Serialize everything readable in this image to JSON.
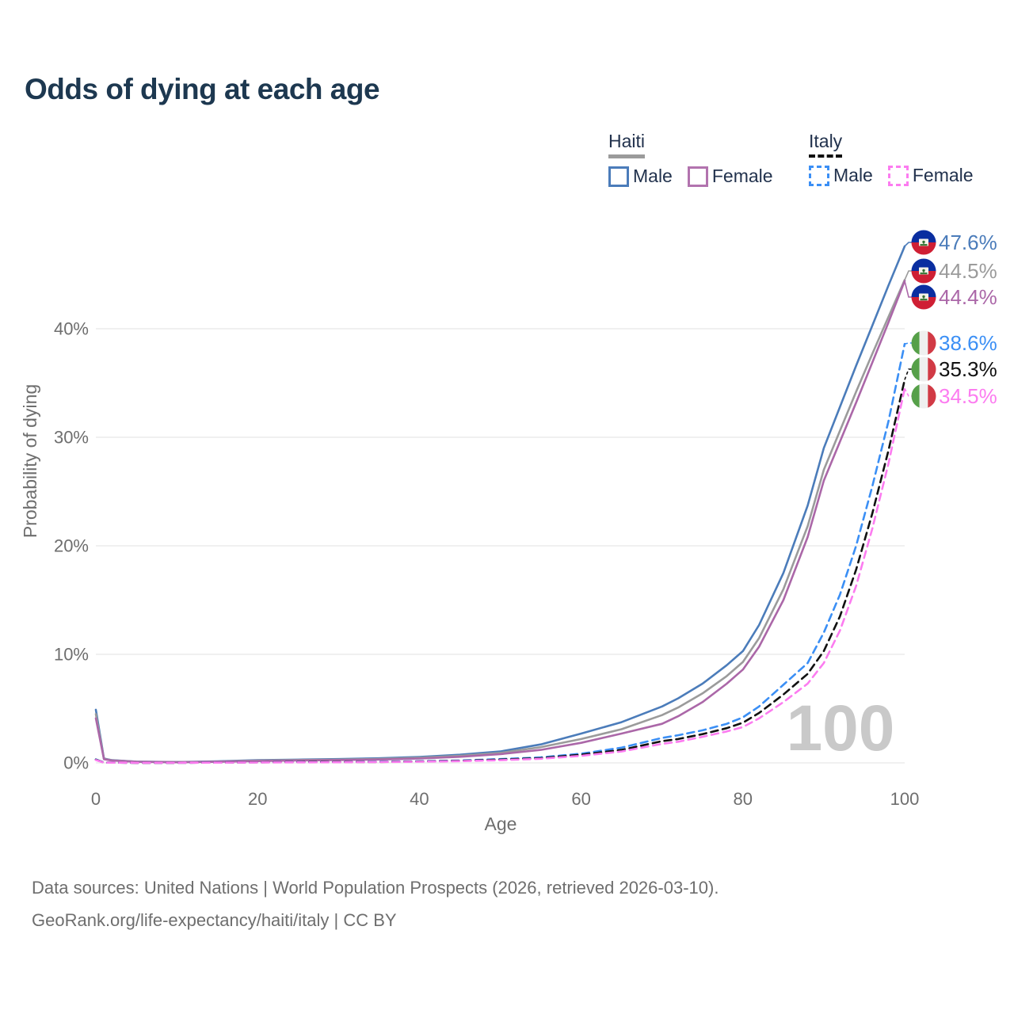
{
  "title": "Odds of dying at each age",
  "legend": {
    "groups": [
      {
        "label": "Haiti",
        "line_style": "solid",
        "underline_color": "#9b9b9b",
        "items": [
          {
            "label": "Male",
            "color": "#4b7cba"
          },
          {
            "label": "Female",
            "color": "#b273ae"
          }
        ]
      },
      {
        "label": "Italy",
        "line_style": "dashed",
        "underline_color": "#111111",
        "items": [
          {
            "label": "Male",
            "color": "#3b8ff5"
          },
          {
            "label": "Female",
            "color": "#fc7cf0"
          }
        ]
      }
    ]
  },
  "chart_data": {
    "type": "line",
    "title": "Odds of dying at each age",
    "xlabel": "Age",
    "ylabel": "Probability of dying",
    "xlim": [
      0,
      100
    ],
    "ylim_percent": [
      0,
      48
    ],
    "grid": "horizontal",
    "watermark": "100",
    "xticks": [
      {
        "value": 0,
        "label": "0"
      },
      {
        "value": 20,
        "label": "20"
      },
      {
        "value": 40,
        "label": "40"
      },
      {
        "value": 60,
        "label": "60"
      },
      {
        "value": 80,
        "label": "80"
      },
      {
        "value": 100,
        "label": "100"
      }
    ],
    "yticks": [
      {
        "value": 0,
        "label": "0%"
      },
      {
        "value": 10,
        "label": "10%"
      },
      {
        "value": 20,
        "label": "20%"
      },
      {
        "value": 30,
        "label": "30%"
      },
      {
        "value": 40,
        "label": "40%"
      }
    ],
    "ages": [
      0,
      1,
      2,
      5,
      10,
      15,
      20,
      25,
      30,
      35,
      40,
      45,
      50,
      55,
      60,
      65,
      70,
      72,
      75,
      78,
      80,
      82,
      85,
      88,
      90,
      92,
      94,
      96,
      98,
      100
    ],
    "series": [
      {
        "id": "haiti-male",
        "name": "Haiti Male",
        "country": "Haiti",
        "sex": "male",
        "style": "solid",
        "color": "#4b7cba",
        "flag": "haiti",
        "end_label": "47.6%",
        "end_value": 47.6,
        "values_percent": [
          4.9,
          0.4,
          0.25,
          0.12,
          0.08,
          0.14,
          0.25,
          0.3,
          0.35,
          0.42,
          0.55,
          0.75,
          1.05,
          1.7,
          2.7,
          3.75,
          5.2,
          5.95,
          7.3,
          9.0,
          10.3,
          12.7,
          17.5,
          23.7,
          29.0,
          32.8,
          36.6,
          40.3,
          44.0,
          47.6
        ]
      },
      {
        "id": "haiti-both",
        "name": "Haiti Both sexes",
        "country": "Haiti",
        "sex": "both",
        "style": "solid",
        "color": "#9b9b9b",
        "flag": "haiti",
        "end_label": "44.5%",
        "end_value": 44.5,
        "values_percent": [
          4.5,
          0.37,
          0.23,
          0.11,
          0.07,
          0.12,
          0.21,
          0.26,
          0.3,
          0.36,
          0.47,
          0.65,
          0.92,
          1.45,
          2.2,
          3.1,
          4.4,
          5.1,
          6.4,
          8.0,
          9.3,
          11.5,
          16.0,
          21.8,
          27.0,
          30.6,
          34.2,
          37.7,
          41.1,
          44.5
        ]
      },
      {
        "id": "haiti-female",
        "name": "Haiti Female",
        "country": "Haiti",
        "sex": "female",
        "style": "solid",
        "color": "#ab67a8",
        "flag": "haiti",
        "end_label": "44.4%",
        "end_value": 44.4,
        "values_percent": [
          4.1,
          0.34,
          0.21,
          0.1,
          0.06,
          0.1,
          0.17,
          0.22,
          0.26,
          0.31,
          0.4,
          0.56,
          0.8,
          1.2,
          1.85,
          2.7,
          3.6,
          4.3,
          5.6,
          7.3,
          8.6,
          10.7,
          15.0,
          20.8,
          26.0,
          29.6,
          33.2,
          36.9,
          40.6,
          44.4
        ]
      },
      {
        "id": "italy-male",
        "name": "Italy Male",
        "country": "Italy",
        "sex": "male",
        "style": "dashed",
        "color": "#3b8ff5",
        "flag": "italy",
        "end_label": "38.6%",
        "end_value": 38.6,
        "values_percent": [
          0.32,
          0.03,
          0.02,
          0.01,
          0.01,
          0.03,
          0.06,
          0.08,
          0.09,
          0.11,
          0.15,
          0.22,
          0.35,
          0.5,
          0.85,
          1.4,
          2.3,
          2.55,
          3.0,
          3.6,
          4.2,
          5.2,
          7.2,
          9.2,
          12.0,
          15.5,
          20.0,
          25.5,
          31.5,
          38.6
        ]
      },
      {
        "id": "italy-both",
        "name": "Italy Both sexes",
        "country": "Italy",
        "sex": "both",
        "style": "dashed",
        "color": "#111111",
        "flag": "italy",
        "end_label": "35.3%",
        "end_value": 35.3,
        "values_percent": [
          0.29,
          0.03,
          0.02,
          0.01,
          0.01,
          0.03,
          0.05,
          0.07,
          0.08,
          0.09,
          0.13,
          0.19,
          0.3,
          0.44,
          0.75,
          1.2,
          2.0,
          2.2,
          2.65,
          3.2,
          3.7,
          4.6,
          6.3,
          8.2,
          10.3,
          13.5,
          17.8,
          23.0,
          28.8,
          35.3
        ]
      },
      {
        "id": "italy-female",
        "name": "Italy Female",
        "country": "Italy",
        "sex": "female",
        "style": "dashed",
        "color": "#fc7cf0",
        "flag": "italy",
        "end_label": "34.5%",
        "end_value": 34.5,
        "values_percent": [
          0.26,
          0.02,
          0.02,
          0.01,
          0.01,
          0.02,
          0.04,
          0.05,
          0.06,
          0.08,
          0.11,
          0.16,
          0.25,
          0.38,
          0.65,
          1.05,
          1.75,
          1.95,
          2.4,
          2.9,
          3.3,
          4.1,
          5.6,
          7.3,
          9.2,
          12.2,
          16.3,
          21.6,
          27.6,
          34.5
        ]
      }
    ]
  },
  "footer": {
    "line1": "Data sources: United Nations | World Population Prospects (2026, retrieved 2026-03-10).",
    "line2": "GeoRank.org/life-expectancy/haiti/italy | CC BY"
  }
}
